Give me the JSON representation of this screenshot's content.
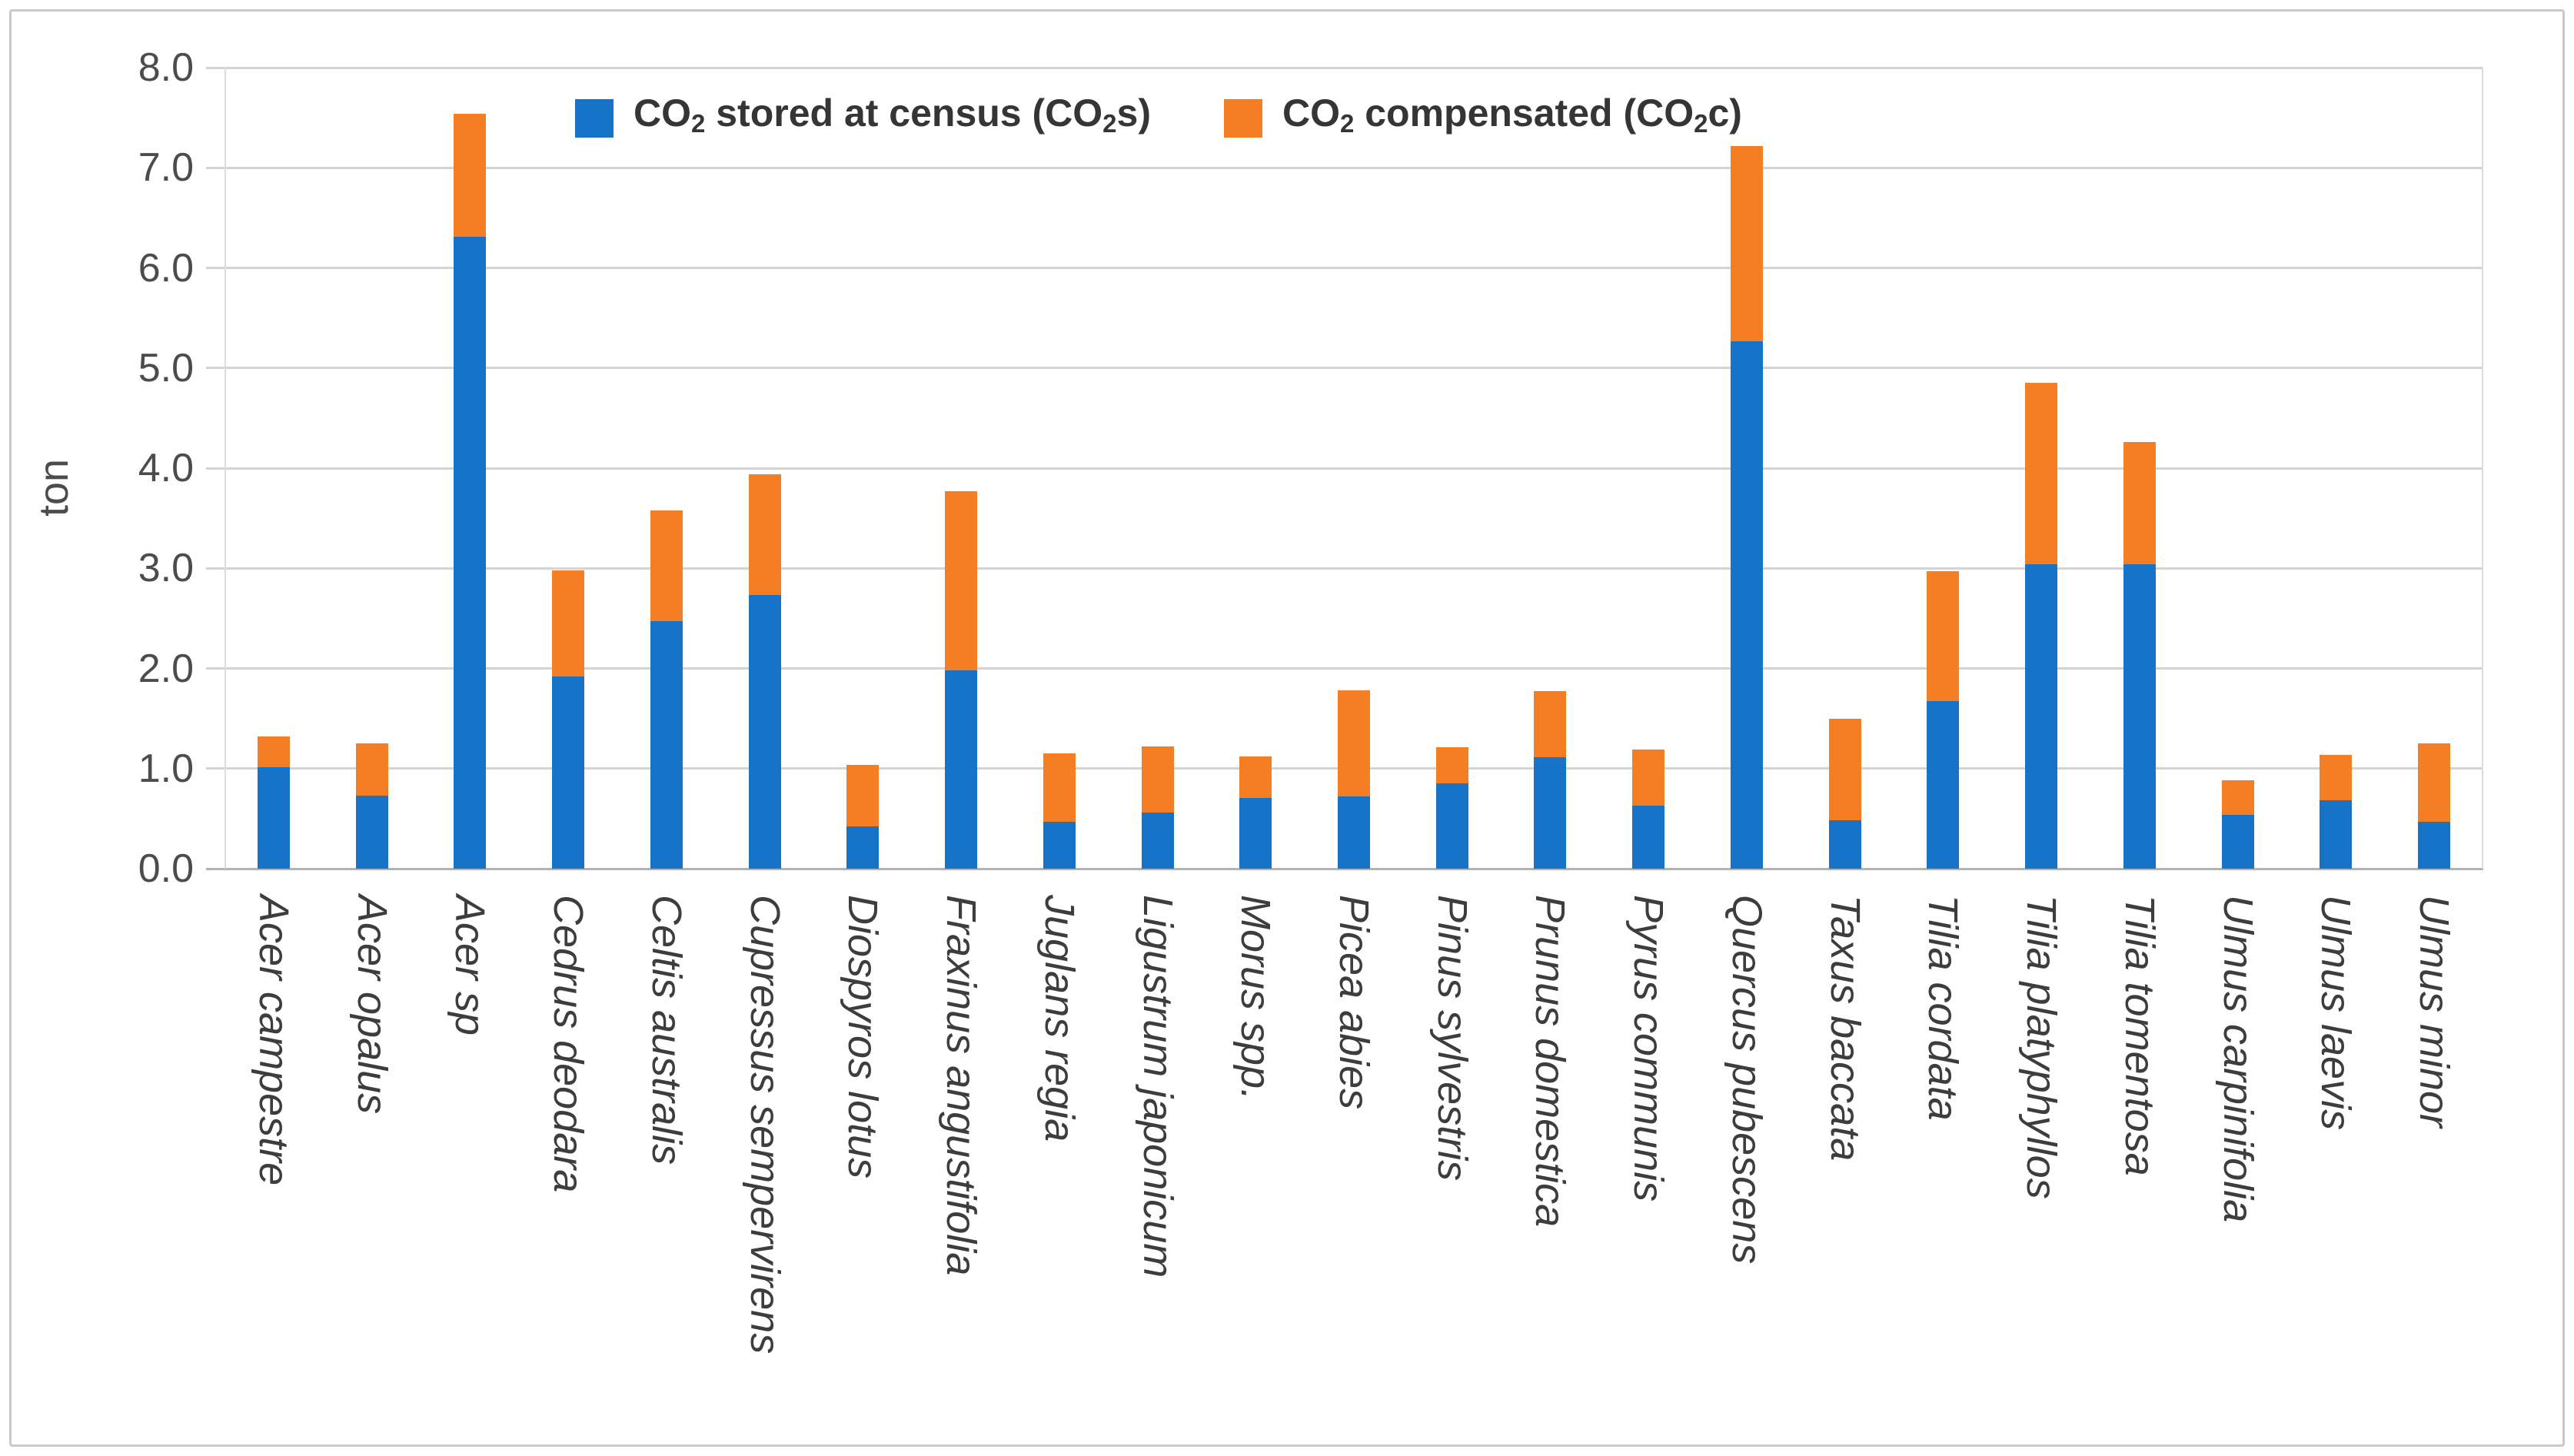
{
  "figure": {
    "background": "#ffffff",
    "border_color": "#c9c9c9"
  },
  "colors": {
    "gridline": "#d4d4d4",
    "axis_line": "#b3b3b3",
    "tick_text": "#4c4c4c",
    "category_text": "#3d3d3d",
    "legend_text": "#353535",
    "series_blue": "#1673C7",
    "series_orange": "#F57E25"
  },
  "chart_data": {
    "type": "bar",
    "stacked": true,
    "title": "",
    "xlabel": "",
    "ylabel": "ton",
    "ylim": [
      0,
      8
    ],
    "ytick_step": 1.0,
    "ytick_labels": [
      "0.0",
      "1.0",
      "2.0",
      "3.0",
      "4.0",
      "5.0",
      "6.0",
      "7.0",
      "8.0"
    ],
    "grid": true,
    "legend_position": "top-center",
    "categories": [
      "Acer campestre",
      "Acer opalus",
      "Acer sp",
      "Cedrus deodara",
      "Celtis australis",
      "Cupressus sempervirens",
      "Diospyros lotus",
      "Fraxinus angustifolia",
      "Juglans regia",
      "Ligustrum japonicum",
      "Morus spp.",
      "Picea abies",
      "Pinus sylvestris",
      "Prunus domestica",
      "Pyrus communis",
      "Quercus pubescens",
      "Taxus baccata",
      "Tilia cordata",
      "Tilia platyphyllos",
      "Tilia tomentosa",
      "Ulmus carpinifolia",
      "Ulmus laevis",
      "Ulmus minor"
    ],
    "series": [
      {
        "name": "CO₂ stored at census (CO₂s)",
        "color": "#1673C7",
        "values": [
          1.01,
          0.73,
          6.31,
          1.92,
          2.47,
          2.73,
          0.42,
          1.98,
          0.47,
          0.56,
          0.71,
          0.72,
          0.85,
          1.11,
          0.63,
          5.27,
          0.48,
          1.67,
          3.04,
          3.04,
          0.54,
          0.68,
          0.47
        ]
      },
      {
        "name": "CO₂ compensated (CO₂c)",
        "color": "#F57E25",
        "values": [
          0.31,
          0.52,
          1.23,
          1.06,
          1.11,
          1.21,
          0.62,
          1.79,
          0.68,
          0.66,
          0.41,
          1.06,
          0.36,
          0.66,
          0.56,
          1.95,
          1.02,
          1.3,
          1.81,
          1.22,
          0.34,
          0.46,
          0.78
        ]
      }
    ]
  }
}
